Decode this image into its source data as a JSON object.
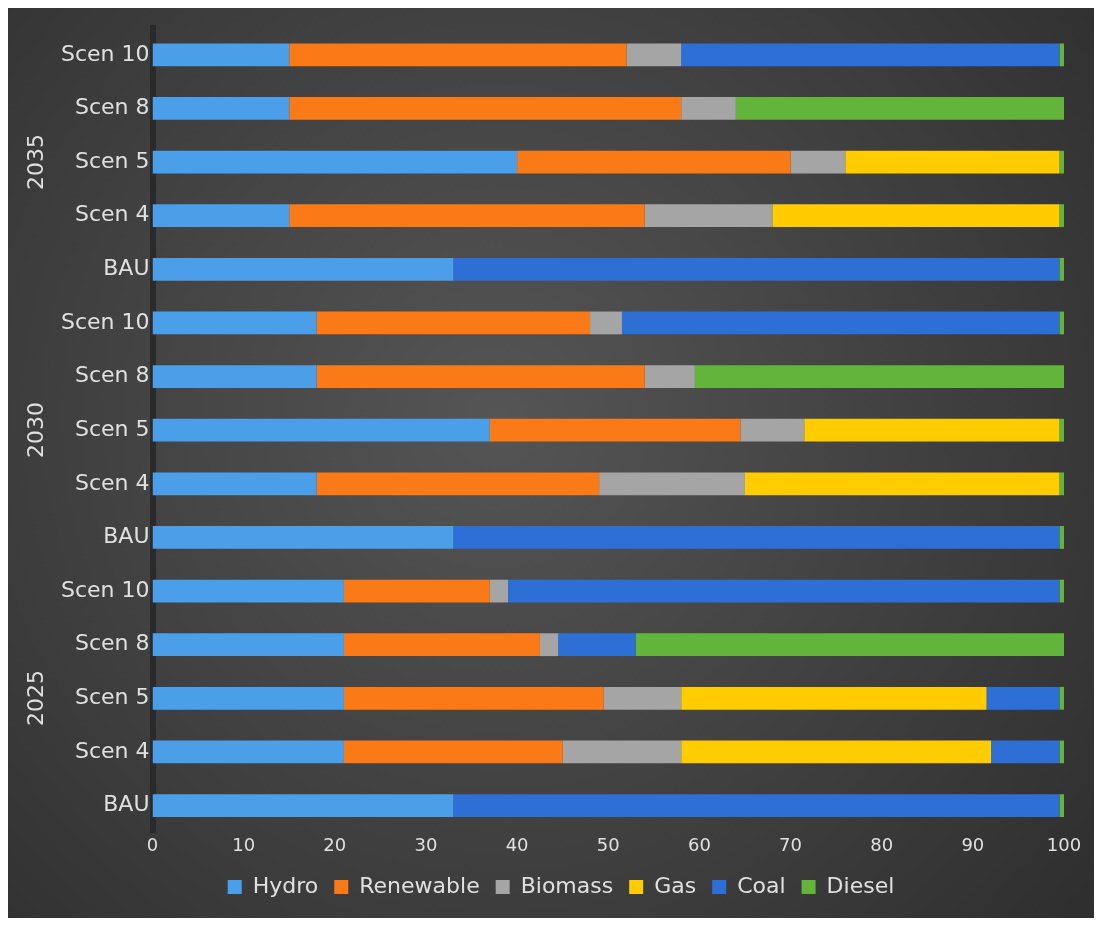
{
  "chart_data": {
    "type": "bar",
    "orientation": "horizontal",
    "stacked": true,
    "categories": [
      "Scen 10",
      "Scen 8",
      "Scen 5",
      "Scen 4",
      "BAU",
      "Scen 10",
      "Scen 8",
      "Scen 5",
      "Scen 4",
      "BAU",
      "Scen 10",
      "Scen 8",
      "Scen 5",
      "Scen 4",
      "BAU"
    ],
    "series": [
      {
        "name": "Hydro",
        "color": "#4a9fe8",
        "values": [
          15,
          15,
          40,
          15,
          33,
          18,
          18,
          37,
          18,
          33,
          21,
          21,
          21,
          21,
          33
        ]
      },
      {
        "name": "Renewable",
        "color": "#f97a16",
        "values": [
          37,
          43,
          30,
          39,
          0,
          30,
          36,
          27.5,
          31,
          0,
          16,
          21.5,
          28.5,
          24,
          0
        ]
      },
      {
        "name": "Biomass",
        "color": "#a5a5a5",
        "values": [
          6,
          6,
          6,
          14,
          0,
          3.5,
          5.5,
          7,
          16,
          0,
          2,
          2,
          8.5,
          13,
          0
        ]
      },
      {
        "name": "Gas",
        "color": "#ffcc00",
        "values": [
          0,
          0,
          23.5,
          31.5,
          0,
          0,
          0,
          28,
          34.5,
          0,
          0,
          0,
          33.5,
          34,
          0
        ]
      },
      {
        "name": "Coal",
        "color": "#2e6fd6",
        "values": [
          41.5,
          0,
          0,
          0,
          66.5,
          48,
          0,
          0,
          0,
          66.5,
          60.5,
          8.5,
          8,
          7.5,
          66.5
        ]
      },
      {
        "name": "Diesel",
        "color": "#62b43a",
        "values": [
          0.5,
          36,
          0.5,
          0.5,
          0.5,
          0.5,
          40.5,
          0.5,
          0.5,
          0.5,
          0.5,
          47,
          0.5,
          0.5,
          0.5
        ]
      }
    ],
    "annotations": [
      "2035",
      "2030",
      "2025"
    ],
    "xlim": [
      0,
      100
    ],
    "xticks": [
      0,
      10,
      20,
      30,
      40,
      50,
      60,
      70,
      80,
      90,
      100
    ],
    "grid": false,
    "legend": "bottom"
  }
}
